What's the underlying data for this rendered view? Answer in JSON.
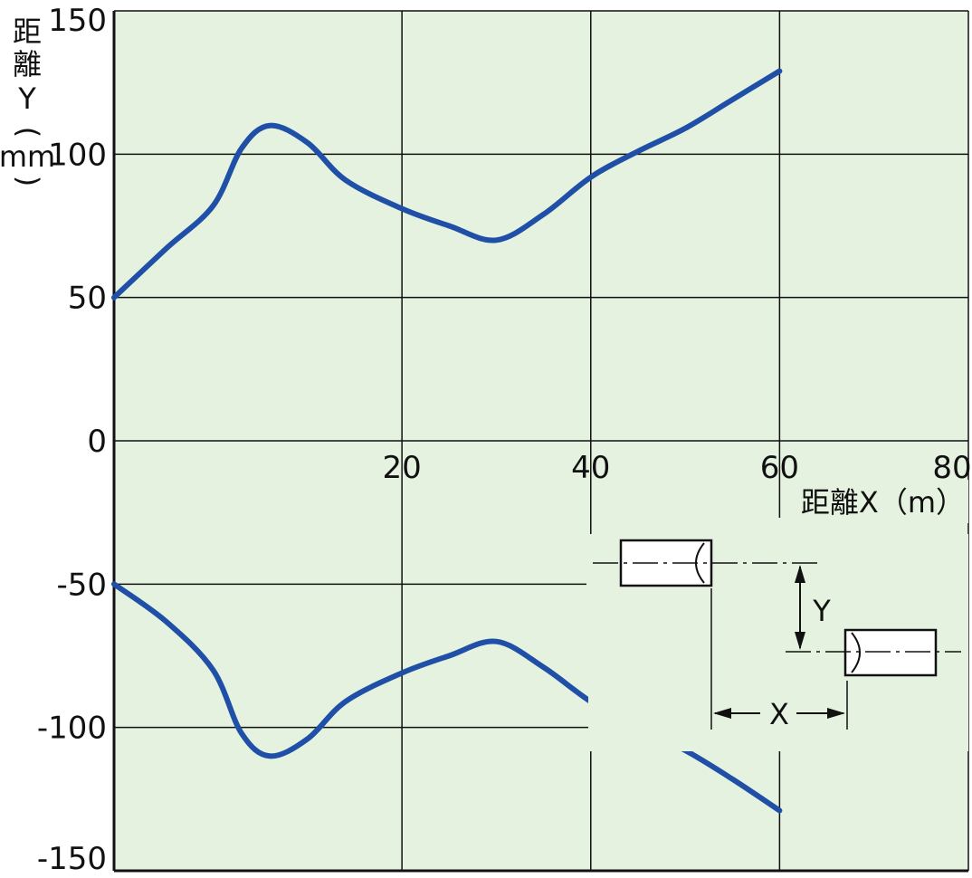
{
  "chart_data": {
    "type": "line",
    "xlabel": "距離X（m）",
    "ylabel_chars": [
      "距",
      "離",
      "Y",
      "（",
      "mm",
      "）"
    ],
    "xlim": [
      -10.5,
      80
    ],
    "ylim": [
      -150,
      150
    ],
    "x_ticks": [
      20,
      40,
      60,
      80
    ],
    "y_ticks": [
      150,
      100,
      50,
      0,
      -50,
      -100,
      -150
    ],
    "grid": true,
    "legend": "none",
    "colors": {
      "plot_bg": "#e5f2e0",
      "line": "#1f4fa6",
      "grid": "#111111"
    },
    "series": [
      {
        "x": [
          -10.5,
          -5,
          0,
          3,
          6,
          10,
          14,
          20,
          25,
          30,
          35,
          40,
          45,
          50,
          55,
          60
        ],
        "y": [
          50,
          67,
          82,
          102,
          110,
          104,
          91,
          81,
          75,
          70,
          79,
          92,
          101,
          109,
          119,
          129
        ]
      },
      {
        "x": [
          -10.5,
          -5,
          0,
          3,
          6,
          10,
          14,
          20,
          25,
          30,
          35,
          40,
          45,
          50,
          55,
          60
        ],
        "y": [
          -50,
          -63,
          -80,
          -102,
          -110,
          -104,
          -91,
          -81,
          -75,
          -70,
          -79,
          -91,
          -100,
          -108,
          -118,
          -129
        ]
      }
    ]
  },
  "diagram": {
    "label_y": "Y",
    "label_x": "X"
  }
}
